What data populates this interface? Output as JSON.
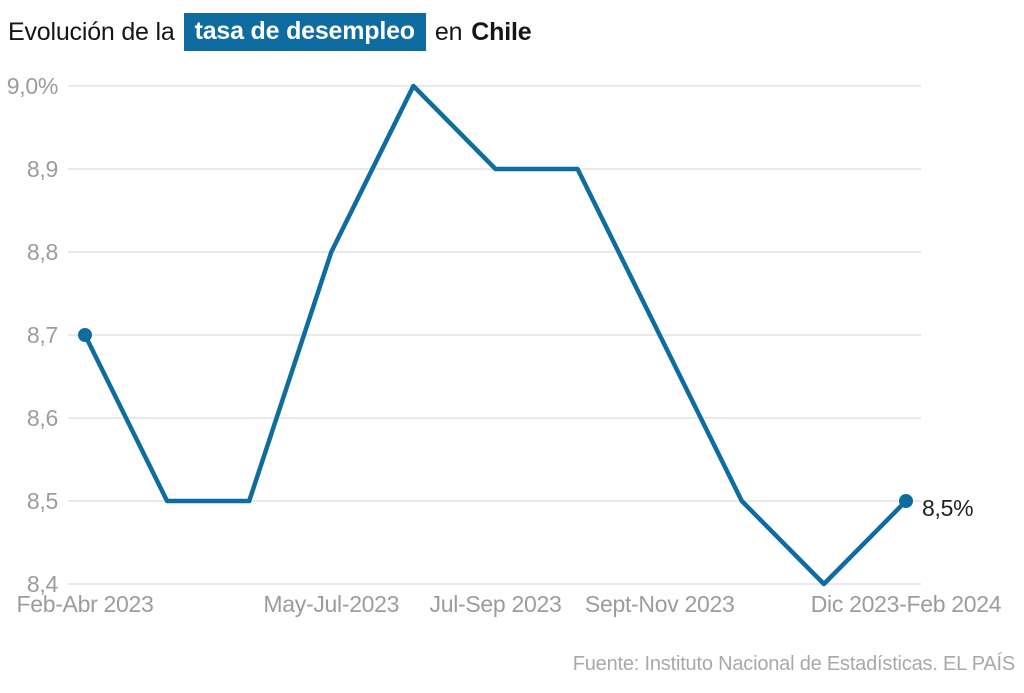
{
  "title": {
    "prefix": "Evolución de la",
    "highlight": "tasa de desempleo",
    "connector": "en",
    "country": "Chile"
  },
  "source": "Fuente: Instituto Nacional de Estadísticas. EL PAÍS",
  "colors": {
    "accent": "#0e6ca1",
    "grid": "#e9e9e9",
    "axis_text": "#9c9c9c",
    "title_text": "#161616",
    "source_text": "#a9a9a9",
    "value_label_text": "#222222",
    "highlight_text": "#ffffff"
  },
  "chart_data": {
    "type": "line",
    "title": "Evolución de la tasa de desempleo en Chile",
    "series": [
      {
        "name": "Tasa de desempleo (%)",
        "values": [
          8.7,
          8.5,
          8.5,
          8.8,
          9.0,
          8.9,
          8.9,
          8.7,
          8.5,
          8.4,
          8.5
        ]
      }
    ],
    "x_tick_labels": [
      {
        "label": "Feb-Abr 2023",
        "point_index": 0
      },
      {
        "label": "May-Jul-2023",
        "point_index": 3
      },
      {
        "label": "Jul-Sep 2023",
        "point_index": 5
      },
      {
        "label": "Sept-Nov 2023",
        "point_index": 7
      },
      {
        "label": "Dic 2023-Feb 2024",
        "point_index": 10
      }
    ],
    "y_ticks": [
      {
        "value": 9.0,
        "label": "9,0%"
      },
      {
        "value": 8.9,
        "label": "8,9"
      },
      {
        "value": 8.8,
        "label": "8,8"
      },
      {
        "value": 8.7,
        "label": "8,7"
      },
      {
        "value": 8.6,
        "label": "8,6"
      },
      {
        "value": 8.5,
        "label": "8,5"
      },
      {
        "value": 8.4,
        "label": "8,4"
      }
    ],
    "ylim": [
      8.4,
      9.0
    ],
    "grid": "horizontal",
    "legend": "none",
    "markers": "first-and-last",
    "end_point_label": "8,5%"
  }
}
